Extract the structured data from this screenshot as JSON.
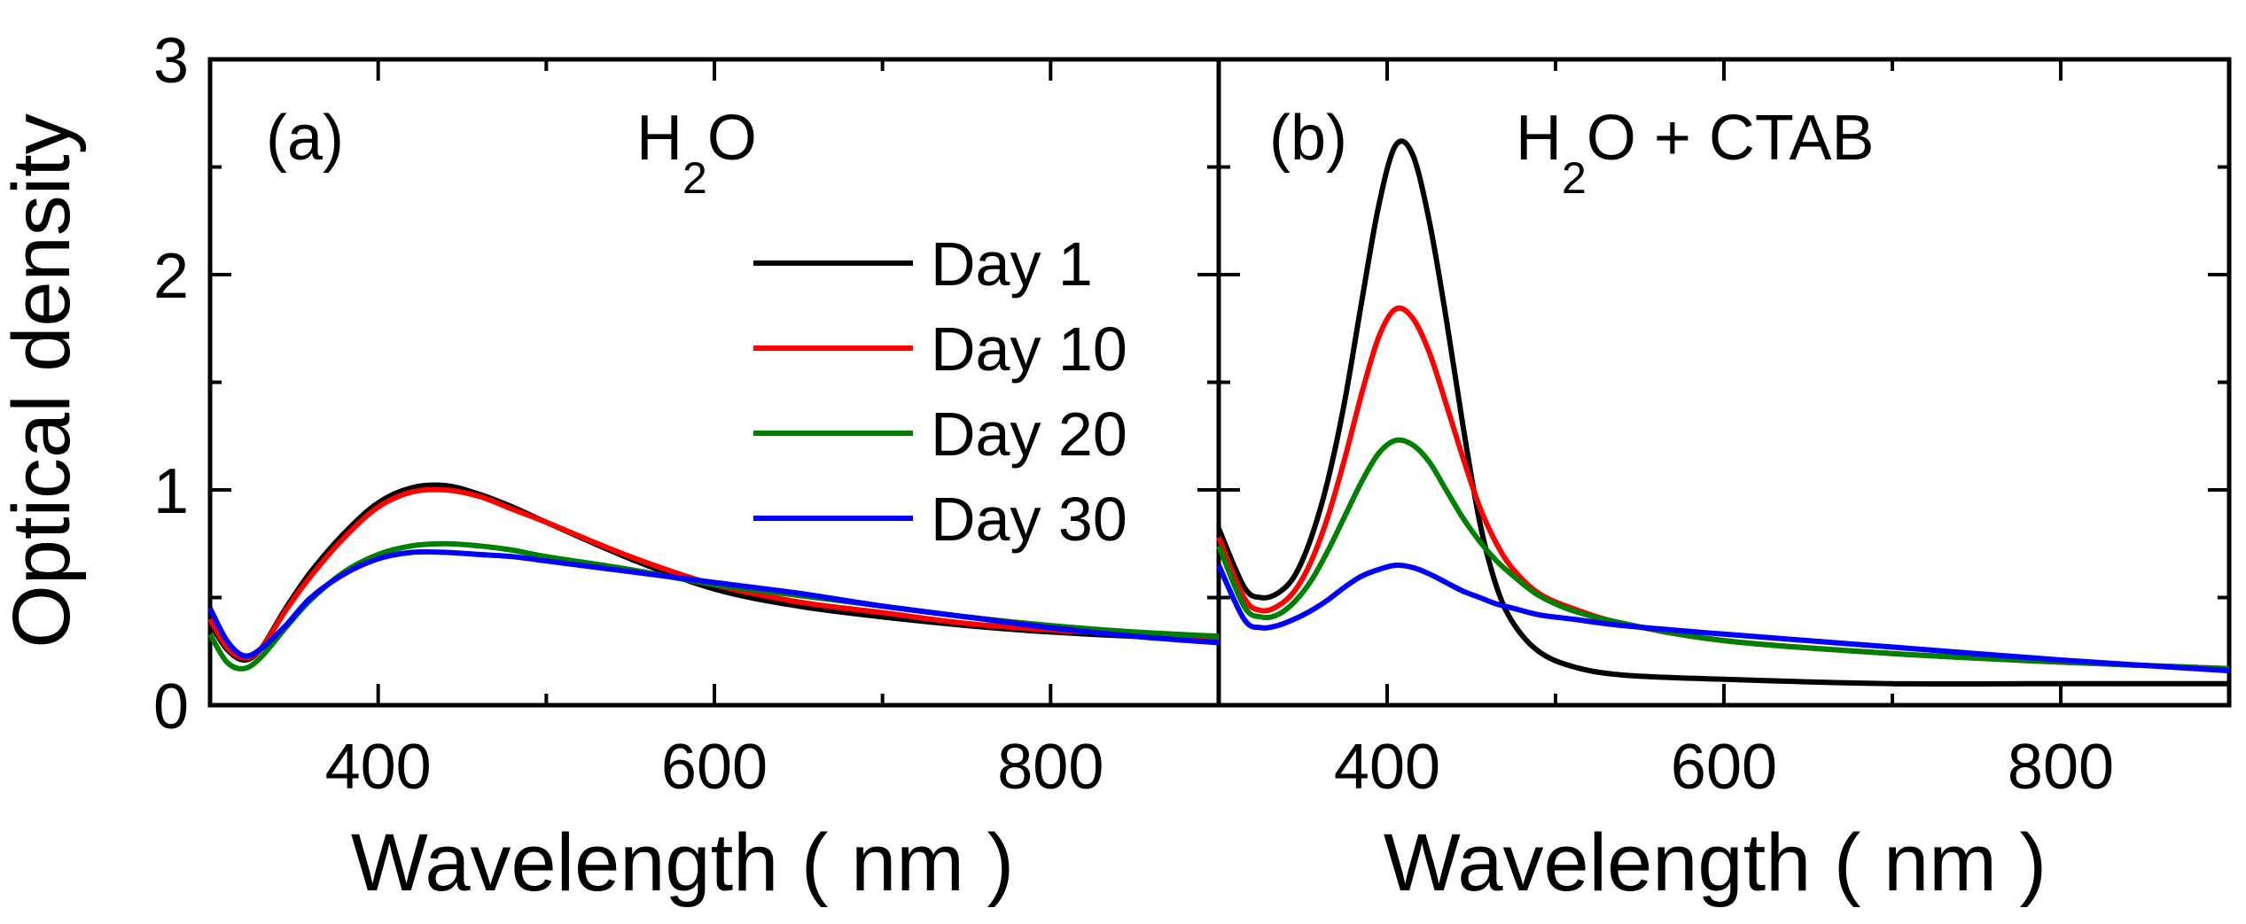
{
  "chart_data": {
    "type": "line",
    "ylabel": "Optical density",
    "xlabel": "Wavelength ( nm )",
    "ylim": [
      0,
      3
    ],
    "xlim": [
      300,
      900
    ],
    "yticks": [
      0,
      1,
      2,
      3
    ],
    "xticks": [
      400,
      600,
      800
    ],
    "legend": {
      "placement": "panel-a-center-right",
      "entries": [
        {
          "name": "Day 1",
          "color": "#000000"
        },
        {
          "name": "Day 10",
          "color": "#ff0000"
        },
        {
          "name": "Day 20",
          "color": "#008000"
        },
        {
          "name": "Day 30",
          "color": "#0000ff"
        }
      ]
    },
    "panels": [
      {
        "id": "a",
        "label": "(a)",
        "title": "H2O",
        "title_main_1": "H",
        "title_sub": "2",
        "title_main_2": "O",
        "series": [
          {
            "name": "Day 1",
            "color": "#000000",
            "x": [
              300,
              310,
              320,
              330,
              345,
              360,
              380,
              400,
              420,
              440,
              460,
              480,
              500,
              550,
              600,
              650,
              700,
              750,
              800,
              850,
              900
            ],
            "y": [
              0.38,
              0.26,
              0.21,
              0.26,
              0.45,
              0.62,
              0.8,
              0.94,
              1.01,
              1.02,
              0.98,
              0.92,
              0.85,
              0.68,
              0.54,
              0.46,
              0.41,
              0.37,
              0.34,
              0.32,
              0.31
            ]
          },
          {
            "name": "Day 10",
            "color": "#ff0000",
            "x": [
              300,
              310,
              320,
              330,
              345,
              360,
              380,
              400,
              420,
              440,
              460,
              480,
              500,
              550,
              600,
              650,
              700,
              750,
              800,
              850,
              900
            ],
            "y": [
              0.4,
              0.27,
              0.22,
              0.26,
              0.44,
              0.6,
              0.78,
              0.92,
              0.99,
              1.0,
              0.97,
              0.91,
              0.85,
              0.69,
              0.56,
              0.48,
              0.43,
              0.38,
              0.35,
              0.33,
              0.31
            ]
          },
          {
            "name": "Day 20",
            "color": "#008000",
            "x": [
              300,
              310,
              320,
              330,
              345,
              360,
              380,
              400,
              420,
              440,
              460,
              480,
              500,
              550,
              600,
              650,
              700,
              750,
              800,
              850,
              900
            ],
            "y": [
              0.33,
              0.2,
              0.17,
              0.22,
              0.36,
              0.49,
              0.62,
              0.7,
              0.74,
              0.75,
              0.74,
              0.72,
              0.69,
              0.63,
              0.56,
              0.51,
              0.46,
              0.41,
              0.37,
              0.34,
              0.32
            ]
          },
          {
            "name": "Day 30",
            "color": "#0000ff",
            "x": [
              300,
              310,
              320,
              330,
              345,
              360,
              380,
              400,
              420,
              440,
              460,
              480,
              500,
              550,
              600,
              650,
              700,
              750,
              800,
              850,
              900
            ],
            "y": [
              0.45,
              0.3,
              0.23,
              0.26,
              0.37,
              0.5,
              0.61,
              0.68,
              0.71,
              0.71,
              0.7,
              0.69,
              0.67,
              0.62,
              0.57,
              0.52,
              0.46,
              0.41,
              0.36,
              0.32,
              0.29
            ]
          }
        ]
      },
      {
        "id": "b",
        "label": "(b)",
        "title": "H2O + CTAB",
        "title_main_1": "H",
        "title_sub": "2",
        "title_main_2": "O + CTAB",
        "series": [
          {
            "name": "Day 1",
            "color": "#000000",
            "x": [
              300,
              315,
              325,
              335,
              345,
              355,
              365,
              375,
              385,
              395,
              405,
              415,
              425,
              435,
              445,
              455,
              465,
              475,
              490,
              510,
              540,
              600,
              700,
              800,
              900
            ],
            "y": [
              0.82,
              0.55,
              0.5,
              0.52,
              0.6,
              0.78,
              1.05,
              1.42,
              1.88,
              2.32,
              2.6,
              2.56,
              2.25,
              1.8,
              1.3,
              0.85,
              0.55,
              0.38,
              0.25,
              0.18,
              0.14,
              0.12,
              0.1,
              0.1,
              0.1
            ]
          },
          {
            "name": "Day 10",
            "color": "#ff0000",
            "x": [
              300,
              315,
              325,
              335,
              345,
              355,
              365,
              375,
              385,
              395,
              405,
              415,
              425,
              435,
              445,
              455,
              465,
              475,
              490,
              510,
              540,
              600,
              700,
              800,
              900
            ],
            "y": [
              0.78,
              0.5,
              0.44,
              0.46,
              0.53,
              0.67,
              0.88,
              1.15,
              1.45,
              1.71,
              1.84,
              1.8,
              1.64,
              1.4,
              1.15,
              0.92,
              0.75,
              0.63,
              0.52,
              0.45,
              0.38,
              0.3,
              0.24,
              0.2,
              0.17
            ]
          },
          {
            "name": "Day 20",
            "color": "#008000",
            "x": [
              300,
              315,
              325,
              335,
              345,
              355,
              365,
              375,
              385,
              395,
              405,
              415,
              425,
              435,
              445,
              455,
              465,
              475,
              490,
              510,
              540,
              600,
              700,
              800,
              900
            ],
            "y": [
              0.74,
              0.46,
              0.41,
              0.42,
              0.48,
              0.58,
              0.72,
              0.88,
              1.04,
              1.17,
              1.23,
              1.21,
              1.13,
              1.0,
              0.87,
              0.76,
              0.67,
              0.6,
              0.51,
              0.44,
              0.38,
              0.3,
              0.24,
              0.2,
              0.17
            ]
          },
          {
            "name": "Day 30",
            "color": "#0000ff",
            "x": [
              300,
              315,
              325,
              335,
              345,
              355,
              365,
              375,
              385,
              395,
              405,
              415,
              425,
              435,
              445,
              455,
              465,
              475,
              490,
              510,
              540,
              600,
              700,
              800,
              900
            ],
            "y": [
              0.65,
              0.4,
              0.36,
              0.37,
              0.4,
              0.44,
              0.49,
              0.55,
              0.6,
              0.63,
              0.65,
              0.64,
              0.61,
              0.57,
              0.53,
              0.5,
              0.47,
              0.45,
              0.42,
              0.4,
              0.37,
              0.33,
              0.27,
              0.21,
              0.16
            ]
          }
        ]
      }
    ]
  }
}
